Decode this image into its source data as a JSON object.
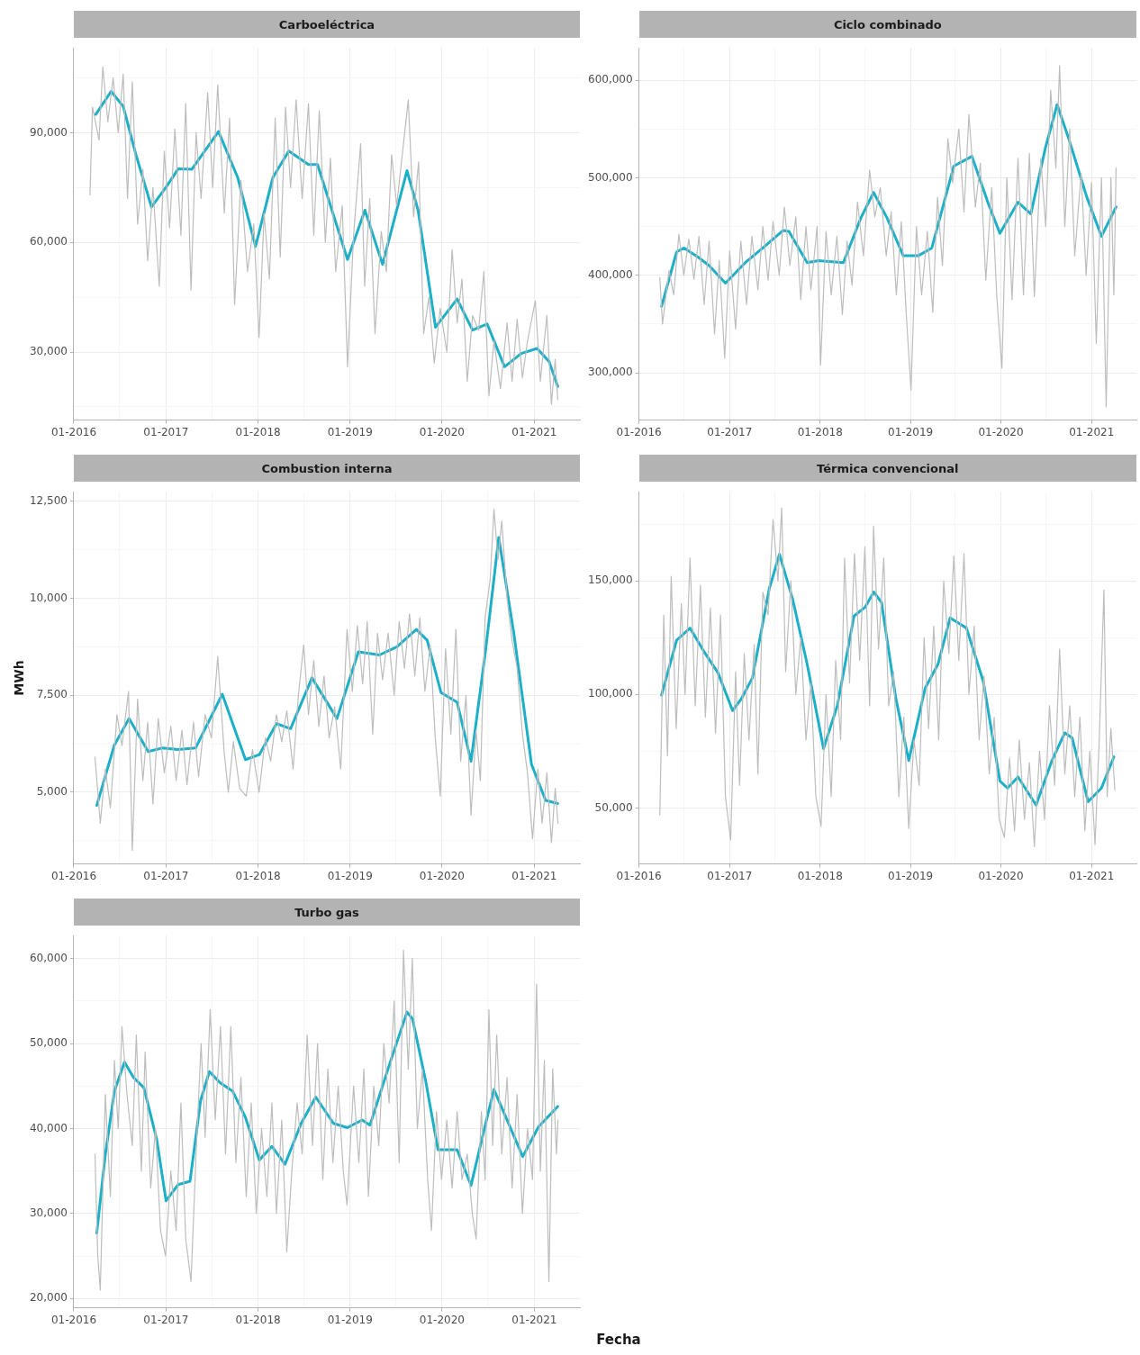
{
  "chart_data": [
    {
      "type": "line",
      "title": "Carboeléctrica",
      "grid": true,
      "xlim": [
        "2016-01-01",
        "2021-07-01"
      ],
      "xticks": [
        {
          "value": "2016-01-01",
          "label": "01-2016"
        },
        {
          "value": "2016-07-01",
          "label": null
        },
        {
          "value": "2017-01-01",
          "label": "01-2017"
        },
        {
          "value": "2017-07-01",
          "label": null
        },
        {
          "value": "2018-01-01",
          "label": "01-2018"
        },
        {
          "value": "2018-07-01",
          "label": null
        },
        {
          "value": "2019-01-01",
          "label": "01-2019"
        },
        {
          "value": "2019-07-01",
          "label": null
        },
        {
          "value": "2020-01-01",
          "label": "01-2020"
        },
        {
          "value": "2020-07-01",
          "label": null
        },
        {
          "value": "2021-01-01",
          "label": "01-2021"
        }
      ],
      "ylim": [
        11400,
        113200
      ],
      "yticks": [
        {
          "value": 15000,
          "label": null
        },
        {
          "value": 30000,
          "label": "30,000"
        },
        {
          "value": 45000,
          "label": null
        },
        {
          "value": 60000,
          "label": "60,000"
        },
        {
          "value": 75000,
          "label": null
        },
        {
          "value": 90000,
          "label": "90,000"
        },
        {
          "value": 105000,
          "label": null
        }
      ],
      "series": [
        {
          "color": "#bdbdbd",
          "x": [
            "2016-03-05",
            "2016-03-15",
            "2016-04-10",
            "2016-04-25",
            "2016-05-15",
            "2016-06-05",
            "2016-06-25",
            "2016-07-15",
            "2016-08-01",
            "2016-08-20",
            "2016-09-10",
            "2016-10-01",
            "2016-10-20",
            "2016-11-10",
            "2016-12-05",
            "2016-12-25",
            "2017-01-15",
            "2017-02-05",
            "2017-03-01",
            "2017-03-20",
            "2017-04-10",
            "2017-04-30",
            "2017-05-20",
            "2017-06-15",
            "2017-07-05",
            "2017-07-25",
            "2017-08-20",
            "2017-09-10",
            "2017-09-30",
            "2017-10-25",
            "2017-11-20",
            "2017-12-15",
            "2018-01-05",
            "2018-01-25",
            "2018-02-15",
            "2018-03-10",
            "2018-03-30",
            "2018-04-20",
            "2018-05-10",
            "2018-06-01",
            "2018-06-25",
            "2018-07-20",
            "2018-08-10",
            "2018-09-01",
            "2018-09-25",
            "2018-10-15",
            "2018-11-05",
            "2018-12-01",
            "2018-12-22",
            "2019-01-15",
            "2019-02-12",
            "2019-02-28",
            "2019-03-20",
            "2019-04-10",
            "2019-05-05",
            "2019-05-25",
            "2019-06-15",
            "2019-07-05",
            "2019-08-20",
            "2019-09-10",
            "2019-09-30",
            "2019-10-20",
            "2019-11-10",
            "2019-12-01",
            "2019-12-25",
            "2020-01-20",
            "2020-02-10",
            "2020-03-01",
            "2020-03-20",
            "2020-04-10",
            "2020-05-01",
            "2020-05-25",
            "2020-06-15",
            "2020-07-05",
            "2020-07-25",
            "2020-08-20",
            "2020-09-15",
            "2020-10-05",
            "2020-10-25",
            "2020-11-15",
            "2020-12-05",
            "2021-01-05",
            "2021-01-25",
            "2021-02-20",
            "2021-03-10",
            "2021-03-25",
            "2021-04-04"
          ],
          "values": [
            73000,
            97000,
            88000,
            108000,
            93000,
            105000,
            90000,
            106000,
            72000,
            104000,
            65000,
            80000,
            55000,
            75000,
            48000,
            85000,
            64000,
            91000,
            62000,
            98000,
            47000,
            90000,
            72000,
            101000,
            75000,
            103000,
            68000,
            94000,
            43000,
            77000,
            52000,
            65000,
            34000,
            68000,
            50000,
            94000,
            56000,
            97000,
            75000,
            99000,
            72000,
            98000,
            62000,
            96000,
            60000,
            83000,
            52000,
            70000,
            26000,
            62000,
            87000,
            48000,
            72000,
            35000,
            63000,
            52000,
            84000,
            70000,
            99000,
            67000,
            82000,
            35000,
            45000,
            27000,
            42000,
            30000,
            58000,
            38000,
            50000,
            22000,
            40000,
            36000,
            52000,
            18000,
            33000,
            20000,
            38000,
            22000,
            39000,
            23000,
            33000,
            44000,
            22000,
            40000,
            15700,
            28000,
            17000
          ]
        },
        {
          "color": "#1cb0c8",
          "x": [
            "2016-03-28",
            "2016-05-28",
            "2016-07-15",
            "2016-09-03",
            "2016-11-04",
            "2017-01-01",
            "2017-02-18",
            "2017-04-13",
            "2017-07-28",
            "2017-10-12",
            "2017-12-22",
            "2018-03-01",
            "2018-05-03",
            "2018-07-20",
            "2018-08-25",
            "2018-12-22",
            "2019-03-01",
            "2019-05-10",
            "2019-08-15",
            "2019-09-28",
            "2019-12-06",
            "2020-03-01",
            "2020-05-01",
            "2020-06-28",
            "2020-09-05",
            "2020-11-10",
            "2021-01-12",
            "2021-03-01",
            "2021-04-04"
          ],
          "values": [
            95000,
            101300,
            97200,
            84100,
            69700,
            75100,
            80100,
            80000,
            90300,
            77800,
            58900,
            77800,
            85000,
            81300,
            81300,
            55300,
            68800,
            54000,
            79600,
            68800,
            36800,
            44500,
            36000,
            37700,
            26000,
            29600,
            31000,
            27400,
            20600
          ]
        }
      ]
    },
    {
      "type": "line",
      "title": "Ciclo combinado",
      "grid": true,
      "xlim": [
        "2016-01-01",
        "2021-07-01"
      ],
      "xticks": [
        {
          "value": "2016-01-01",
          "label": "01-2016"
        },
        {
          "value": "2016-07-01",
          "label": null
        },
        {
          "value": "2017-01-01",
          "label": "01-2017"
        },
        {
          "value": "2017-07-01",
          "label": null
        },
        {
          "value": "2018-01-01",
          "label": "01-2018"
        },
        {
          "value": "2018-07-01",
          "label": null
        },
        {
          "value": "2019-01-01",
          "label": "01-2019"
        },
        {
          "value": "2019-07-01",
          "label": null
        },
        {
          "value": "2020-01-01",
          "label": "01-2020"
        },
        {
          "value": "2020-07-01",
          "label": null
        },
        {
          "value": "2021-01-01",
          "label": "01-2021"
        }
      ],
      "ylim": [
        251500,
        633200
      ],
      "yticks": [
        {
          "value": 300000,
          "label": "300,000"
        },
        {
          "value": 350000,
          "label": null
        },
        {
          "value": 400000,
          "label": "400,000"
        },
        {
          "value": 450000,
          "label": null
        },
        {
          "value": 500000,
          "label": "500,000"
        },
        {
          "value": 550000,
          "label": null
        },
        {
          "value": 600000,
          "label": "600,000"
        }
      ],
      "series": [
        {
          "color": "#bdbdbd",
          "x": [
            "2016-03-25",
            "2016-04-05",
            "2016-05-01",
            "2016-05-20",
            "2016-06-10",
            "2016-06-30",
            "2016-07-20",
            "2016-08-10",
            "2016-08-30",
            "2016-09-20",
            "2016-10-10",
            "2016-11-01",
            "2016-11-20",
            "2016-12-12",
            "2017-01-01",
            "2017-01-25",
            "2017-02-15",
            "2017-03-10",
            "2017-04-01",
            "2017-04-25",
            "2017-05-15",
            "2017-06-05",
            "2017-06-25",
            "2017-07-20",
            "2017-08-10",
            "2017-09-01",
            "2017-09-25",
            "2017-10-15",
            "2017-11-05",
            "2017-11-25",
            "2017-12-20",
            "2018-01-03",
            "2018-01-25",
            "2018-02-15",
            "2018-03-10",
            "2018-04-01",
            "2018-04-20",
            "2018-05-10",
            "2018-06-01",
            "2018-06-25",
            "2018-07-20",
            "2018-08-10",
            "2018-09-01",
            "2018-09-25",
            "2018-10-15",
            "2018-11-05",
            "2018-11-25",
            "2018-12-15",
            "2019-01-03",
            "2019-01-25",
            "2019-02-15",
            "2019-03-10",
            "2019-04-01",
            "2019-04-20",
            "2019-05-10",
            "2019-06-01",
            "2019-06-20",
            "2019-07-15",
            "2019-08-05",
            "2019-08-25",
            "2019-09-20",
            "2019-10-10",
            "2019-11-01",
            "2019-11-25",
            "2019-12-15",
            "2020-01-05",
            "2020-01-25",
            "2020-02-15",
            "2020-03-10",
            "2020-04-01",
            "2020-04-25",
            "2020-05-15",
            "2020-06-10",
            "2020-06-30",
            "2020-07-20",
            "2020-08-10",
            "2020-08-25",
            "2020-09-15",
            "2020-10-05",
            "2020-10-25",
            "2020-11-20",
            "2020-12-10",
            "2021-01-01",
            "2021-01-20",
            "2021-02-10",
            "2021-03-01",
            "2021-03-20",
            "2021-04-01",
            "2021-04-10"
          ],
          "values": [
            398000,
            350000,
            405000,
            380000,
            442000,
            400000,
            437000,
            396000,
            440000,
            370000,
            435000,
            340000,
            415000,
            315000,
            425000,
            345000,
            435000,
            370000,
            440000,
            385000,
            450000,
            395000,
            455000,
            400000,
            470000,
            410000,
            460000,
            375000,
            450000,
            385000,
            450000,
            308000,
            445000,
            380000,
            440000,
            360000,
            435000,
            390000,
            475000,
            420000,
            508000,
            460000,
            490000,
            420000,
            465000,
            380000,
            455000,
            360000,
            282000,
            450000,
            380000,
            445000,
            362000,
            480000,
            410000,
            540000,
            495000,
            550000,
            465000,
            565000,
            470000,
            515000,
            395000,
            490000,
            380000,
            305000,
            500000,
            375000,
            520000,
            380000,
            525000,
            378000,
            520000,
            450000,
            590000,
            510000,
            615000,
            450000,
            550000,
            420000,
            505000,
            400000,
            495000,
            330000,
            500000,
            265000,
            500000,
            380000,
            510000
          ]
        },
        {
          "color": "#1cb0c8",
          "x": [
            "2016-04-01",
            "2016-06-01",
            "2016-07-01",
            "2016-08-25",
            "2016-10-10",
            "2016-12-15",
            "2017-03-05",
            "2017-05-15",
            "2017-08-05",
            "2017-08-28",
            "2017-11-10",
            "2017-12-25",
            "2018-04-05",
            "2018-06-15",
            "2018-08-05",
            "2018-09-28",
            "2018-12-03",
            "2019-02-01",
            "2019-03-28",
            "2019-06-25",
            "2019-09-06",
            "2019-11-12",
            "2019-12-28",
            "2020-03-10",
            "2020-05-01",
            "2020-06-28",
            "2020-08-15",
            "2020-10-01",
            "2020-12-13",
            "2021-02-10",
            "2021-04-10"
          ],
          "values": [
            368000,
            424000,
            428000,
            419000,
            410000,
            392000,
            413000,
            428000,
            446000,
            445000,
            413000,
            415000,
            413000,
            459000,
            485000,
            459000,
            420000,
            420000,
            428000,
            512000,
            522000,
            473000,
            443000,
            475000,
            463000,
            530000,
            575000,
            540000,
            480000,
            440000,
            470000
          ]
        }
      ]
    },
    {
      "type": "line",
      "title": "Combustion interna",
      "ylabel": "MWh",
      "grid": true,
      "xlim": [
        "2016-01-01",
        "2021-07-01"
      ],
      "xticks": [
        {
          "value": "2016-01-01",
          "label": "01-2016"
        },
        {
          "value": "2016-07-01",
          "label": null
        },
        {
          "value": "2017-01-01",
          "label": "01-2017"
        },
        {
          "value": "2017-07-01",
          "label": null
        },
        {
          "value": "2018-01-01",
          "label": "01-2018"
        },
        {
          "value": "2018-07-01",
          "label": null
        },
        {
          "value": "2019-01-01",
          "label": "01-2019"
        },
        {
          "value": "2019-07-01",
          "label": null
        },
        {
          "value": "2020-01-01",
          "label": "01-2020"
        },
        {
          "value": "2020-07-01",
          "label": null
        },
        {
          "value": "2021-01-01",
          "label": "01-2021"
        }
      ],
      "ylim": [
        3150,
        12750
      ],
      "yticks": [
        {
          "value": 3750,
          "label": null
        },
        {
          "value": 5000,
          "label": "5,000"
        },
        {
          "value": 6250,
          "label": null
        },
        {
          "value": 7500,
          "label": "7,500"
        },
        {
          "value": 8750,
          "label": null
        },
        {
          "value": 10000,
          "label": "10,000"
        },
        {
          "value": 11250,
          "label": null
        },
        {
          "value": 12500,
          "label": "12,500"
        }
      ],
      "series": [
        {
          "color": "#bdbdbd",
          "x": [
            "2016-03-25",
            "2016-04-15",
            "2016-05-05",
            "2016-05-25",
            "2016-06-20",
            "2016-07-10",
            "2016-08-05",
            "2016-08-20",
            "2016-09-10",
            "2016-10-01",
            "2016-10-20",
            "2016-11-10",
            "2016-12-01",
            "2016-12-25",
            "2017-01-20",
            "2017-02-10",
            "2017-03-05",
            "2017-03-25",
            "2017-04-20",
            "2017-05-10",
            "2017-06-05",
            "2017-06-30",
            "2017-07-25",
            "2017-08-20",
            "2017-09-05",
            "2017-09-25",
            "2017-10-20",
            "2017-11-15",
            "2017-12-10",
            "2018-01-05",
            "2018-01-30",
            "2018-02-20",
            "2018-03-15",
            "2018-04-05",
            "2018-04-25",
            "2018-05-20",
            "2018-06-10",
            "2018-07-01",
            "2018-07-20",
            "2018-08-10",
            "2018-08-30",
            "2018-09-20",
            "2018-10-10",
            "2018-11-01",
            "2018-11-25",
            "2018-12-20",
            "2019-01-10",
            "2019-01-30",
            "2019-02-20",
            "2019-03-10",
            "2019-04-01",
            "2019-04-20",
            "2019-05-10",
            "2019-06-01",
            "2019-06-25",
            "2019-07-15",
            "2019-08-05",
            "2019-08-25",
            "2019-09-15",
            "2019-10-05",
            "2019-10-25",
            "2019-11-15",
            "2019-12-05",
            "2019-12-25",
            "2020-01-15",
            "2020-02-05",
            "2020-02-25",
            "2020-03-15",
            "2020-04-05",
            "2020-04-25",
            "2020-05-15",
            "2020-06-01",
            "2020-06-20",
            "2020-07-10",
            "2020-07-25",
            "2020-08-10",
            "2020-08-25",
            "2020-09-15",
            "2020-10-05",
            "2020-10-25",
            "2020-11-15",
            "2020-12-05",
            "2020-12-25",
            "2021-01-15",
            "2021-02-01",
            "2021-02-20",
            "2021-03-10",
            "2021-03-25",
            "2021-04-05"
          ],
          "values": [
            5900,
            4200,
            5600,
            4600,
            7000,
            6200,
            7600,
            3500,
            7400,
            5300,
            6800,
            4700,
            6900,
            5500,
            6700,
            5300,
            6600,
            5200,
            6800,
            5400,
            7000,
            6400,
            8500,
            6000,
            5000,
            6300,
            5100,
            4900,
            6100,
            5000,
            6400,
            5800,
            7000,
            6300,
            7100,
            5600,
            7500,
            8800,
            7000,
            8400,
            6700,
            8000,
            6400,
            7200,
            5600,
            9200,
            7600,
            9300,
            7800,
            9400,
            6500,
            9100,
            7900,
            9100,
            7500,
            9400,
            8200,
            9600,
            8000,
            9500,
            7600,
            8800,
            6400,
            4900,
            8700,
            6500,
            9200,
            5800,
            7500,
            4400,
            6600,
            5300,
            9500,
            10500,
            12300,
            11000,
            12000,
            10000,
            8900,
            8200,
            6500,
            5500,
            3800,
            5600,
            4200,
            5500,
            3700,
            5100,
            4200
          ]
        },
        {
          "color": "#1cb0c8",
          "x": [
            "2016-04-01",
            "2016-06-10",
            "2016-08-07",
            "2016-10-22",
            "2016-12-16",
            "2017-02-18",
            "2017-04-28",
            "2017-08-12",
            "2017-11-12",
            "2018-01-06",
            "2018-03-15",
            "2018-05-10",
            "2018-08-03",
            "2018-11-10",
            "2019-02-03",
            "2019-04-28",
            "2019-07-06",
            "2019-09-21",
            "2019-11-03",
            "2019-12-28",
            "2020-03-01",
            "2020-04-25",
            "2020-06-22",
            "2020-08-13",
            "2020-10-12",
            "2020-12-21",
            "2021-02-15",
            "2021-04-04"
          ],
          "values": [
            4660,
            6220,
            6900,
            6050,
            6140,
            6100,
            6140,
            7530,
            5840,
            5970,
            6770,
            6640,
            7950,
            6900,
            8620,
            8540,
            8750,
            9200,
            8920,
            7570,
            7320,
            5800,
            8670,
            11570,
            9090,
            5720,
            4790,
            4710
          ]
        }
      ]
    },
    {
      "type": "line",
      "title": "Térmica convencional",
      "grid": true,
      "xlim": [
        "2016-01-01",
        "2021-07-01"
      ],
      "xticks": [
        {
          "value": "2016-01-01",
          "label": "01-2016"
        },
        {
          "value": "2016-07-01",
          "label": null
        },
        {
          "value": "2017-01-01",
          "label": "01-2017"
        },
        {
          "value": "2017-07-01",
          "label": null
        },
        {
          "value": "2018-01-01",
          "label": "01-2018"
        },
        {
          "value": "2018-07-01",
          "label": null
        },
        {
          "value": "2019-01-01",
          "label": "01-2019"
        },
        {
          "value": "2019-07-01",
          "label": null
        },
        {
          "value": "2020-01-01",
          "label": "01-2020"
        },
        {
          "value": "2020-07-01",
          "label": null
        },
        {
          "value": "2021-01-01",
          "label": "01-2021"
        }
      ],
      "ylim": [
        25400,
        189200
      ],
      "yticks": [
        {
          "value": 50000,
          "label": "50,000"
        },
        {
          "value": 75000,
          "label": null
        },
        {
          "value": 100000,
          "label": "100,000"
        },
        {
          "value": 125000,
          "label": null
        },
        {
          "value": 150000,
          "label": "150,000"
        },
        {
          "value": 175000,
          "label": null
        }
      ],
      "series": [
        {
          "color": "#bdbdbd",
          "x": [
            "2016-03-25",
            "2016-04-10",
            "2016-04-25",
            "2016-05-10",
            "2016-05-30",
            "2016-06-20",
            "2016-07-05",
            "2016-07-25",
            "2016-08-15",
            "2016-09-05",
            "2016-09-25",
            "2016-10-15",
            "2016-11-05",
            "2016-11-25",
            "2016-12-15",
            "2017-01-05",
            "2017-01-25",
            "2017-02-10",
            "2017-03-01",
            "2017-03-20",
            "2017-04-10",
            "2017-04-25",
            "2017-05-15",
            "2017-06-05",
            "2017-06-25",
            "2017-07-15",
            "2017-07-30",
            "2017-08-15",
            "2017-09-05",
            "2017-09-25",
            "2017-10-15",
            "2017-11-05",
            "2017-11-25",
            "2017-12-15",
            "2018-01-05",
            "2018-01-25",
            "2018-02-15",
            "2018-03-05",
            "2018-03-25",
            "2018-04-10",
            "2018-04-30",
            "2018-05-20",
            "2018-06-10",
            "2018-07-01",
            "2018-07-20",
            "2018-08-05",
            "2018-08-25",
            "2018-09-15",
            "2018-10-05",
            "2018-10-25",
            "2018-11-15",
            "2018-12-05",
            "2018-12-25",
            "2019-01-15",
            "2019-02-05",
            "2019-02-25",
            "2019-03-15",
            "2019-04-05",
            "2019-04-25",
            "2019-05-15",
            "2019-06-05",
            "2019-06-25",
            "2019-07-15",
            "2019-08-05",
            "2019-08-25",
            "2019-09-15",
            "2019-10-05",
            "2019-10-25",
            "2019-11-15",
            "2019-12-05",
            "2019-12-25",
            "2020-01-15",
            "2020-02-05",
            "2020-02-25",
            "2020-03-15",
            "2020-04-05",
            "2020-04-25",
            "2020-05-15",
            "2020-06-05",
            "2020-06-25",
            "2020-07-15",
            "2020-08-05",
            "2020-08-25",
            "2020-09-15",
            "2020-10-05",
            "2020-10-25",
            "2020-11-15",
            "2020-12-05",
            "2020-12-25",
            "2021-01-15",
            "2021-02-01",
            "2021-02-20",
            "2021-03-05",
            "2021-03-20",
            "2021-04-05"
          ],
          "values": [
            47000,
            135000,
            73000,
            152000,
            85000,
            140000,
            100000,
            160000,
            95000,
            148000,
            90000,
            138000,
            83000,
            135000,
            55000,
            36000,
            110000,
            60000,
            118000,
            80000,
            122000,
            65000,
            145000,
            135000,
            177000,
            150000,
            182000,
            110000,
            150000,
            100000,
            125000,
            80000,
            105000,
            55000,
            42000,
            100000,
            55000,
            115000,
            80000,
            160000,
            105000,
            162000,
            115000,
            165000,
            95000,
            174000,
            120000,
            160000,
            95000,
            110000,
            55000,
            90000,
            41000,
            80000,
            60000,
            125000,
            85000,
            130000,
            80000,
            150000,
            118000,
            161000,
            115000,
            162000,
            100000,
            130000,
            80000,
            108000,
            65000,
            90000,
            45000,
            37000,
            72000,
            40000,
            80000,
            45000,
            70000,
            33000,
            75000,
            45000,
            95000,
            60000,
            120000,
            65000,
            95000,
            55000,
            90000,
            40000,
            75000,
            34000,
            80000,
            146000,
            55000,
            85000,
            58000
          ]
        },
        {
          "color": "#1cb0c8",
          "x": [
            "2016-04-01",
            "2016-06-01",
            "2016-07-25",
            "2016-09-25",
            "2016-11-15",
            "2017-01-13",
            "2017-02-18",
            "2017-04-03",
            "2017-06-10",
            "2017-07-21",
            "2017-09-12",
            "2017-11-10",
            "2018-01-15",
            "2018-03-12",
            "2018-05-18",
            "2018-07-01",
            "2018-08-06",
            "2018-09-06",
            "2018-11-03",
            "2018-12-25",
            "2019-03-01",
            "2019-04-22",
            "2019-06-10",
            "2019-08-15",
            "2019-10-22",
            "2019-12-28",
            "2020-01-28",
            "2020-03-10",
            "2020-05-22",
            "2020-07-25",
            "2020-09-15",
            "2020-10-15",
            "2020-12-18",
            "2021-02-10",
            "2021-04-01"
          ],
          "values": [
            99700,
            123900,
            129200,
            117900,
            109500,
            92900,
            98200,
            107300,
            146600,
            161700,
            142100,
            113300,
            76200,
            95200,
            134500,
            138300,
            145100,
            140500,
            98200,
            70900,
            102700,
            113300,
            133700,
            129200,
            105700,
            61900,
            58800,
            63700,
            51300,
            70900,
            83100,
            80800,
            52800,
            58800,
            72500
          ]
        }
      ]
    },
    {
      "type": "line",
      "title": "Turbo gas",
      "xlabel": "Fecha",
      "grid": true,
      "xlim": [
        "2016-01-01",
        "2021-07-01"
      ],
      "xticks": [
        {
          "value": "2016-01-01",
          "label": "01-2016"
        },
        {
          "value": "2016-07-01",
          "label": null
        },
        {
          "value": "2017-01-01",
          "label": "01-2017"
        },
        {
          "value": "2017-07-01",
          "label": null
        },
        {
          "value": "2018-01-01",
          "label": "01-2018"
        },
        {
          "value": "2018-07-01",
          "label": null
        },
        {
          "value": "2019-01-01",
          "label": "01-2019"
        },
        {
          "value": "2019-07-01",
          "label": null
        },
        {
          "value": "2020-01-01",
          "label": "01-2020"
        },
        {
          "value": "2020-07-01",
          "label": null
        },
        {
          "value": "2021-01-01",
          "label": "01-2021"
        }
      ],
      "ylim": [
        18900,
        62700
      ],
      "yticks": [
        {
          "value": 20000,
          "label": "20,000"
        },
        {
          "value": 25000,
          "label": null
        },
        {
          "value": 30000,
          "label": "30,000"
        },
        {
          "value": 35000,
          "label": null
        },
        {
          "value": 40000,
          "label": "40,000"
        },
        {
          "value": 45000,
          "label": null
        },
        {
          "value": 50000,
          "label": "50,000"
        },
        {
          "value": 55000,
          "label": null
        },
        {
          "value": 60000,
          "label": "60,000"
        }
      ],
      "series": [
        {
          "color": "#bdbdbd",
          "x": [
            "2016-03-25",
            "2016-04-05",
            "2016-04-15",
            "2016-05-05",
            "2016-05-25",
            "2016-06-10",
            "2016-06-25",
            "2016-07-10",
            "2016-07-30",
            "2016-08-20",
            "2016-09-05",
            "2016-09-25",
            "2016-10-10",
            "2016-11-01",
            "2016-11-20",
            "2016-12-10",
            "2016-12-30",
            "2017-01-20",
            "2017-02-10",
            "2017-03-01",
            "2017-03-20",
            "2017-04-10",
            "2017-04-30",
            "2017-05-20",
            "2017-06-05",
            "2017-06-25",
            "2017-07-15",
            "2017-08-05",
            "2017-08-25",
            "2017-09-15",
            "2017-10-05",
            "2017-10-25",
            "2017-11-15",
            "2017-12-05",
            "2017-12-25",
            "2018-01-15",
            "2018-02-05",
            "2018-02-25",
            "2018-03-15",
            "2018-04-05",
            "2018-04-25",
            "2018-05-15",
            "2018-06-05",
            "2018-06-25",
            "2018-07-15",
            "2018-08-05",
            "2018-08-25",
            "2018-09-15",
            "2018-10-05",
            "2018-10-25",
            "2018-11-15",
            "2018-12-05",
            "2018-12-20",
            "2019-01-15",
            "2019-02-05",
            "2019-02-25",
            "2019-03-15",
            "2019-04-05",
            "2019-04-25",
            "2019-05-15",
            "2019-06-05",
            "2019-06-25",
            "2019-07-15",
            "2019-08-01",
            "2019-08-20",
            "2019-09-05",
            "2019-09-25",
            "2019-10-15",
            "2019-11-05",
            "2019-11-20",
            "2019-12-10",
            "2019-12-30",
            "2020-01-20",
            "2020-02-10",
            "2020-03-01",
            "2020-03-20",
            "2020-04-10",
            "2020-04-30",
            "2020-05-15",
            "2020-06-05",
            "2020-06-20",
            "2020-07-05",
            "2020-07-20",
            "2020-08-05",
            "2020-08-25",
            "2020-09-15",
            "2020-10-05",
            "2020-10-25",
            "2020-11-15",
            "2020-12-05",
            "2020-12-25",
            "2021-01-10",
            "2021-01-25",
            "2021-02-10",
            "2021-02-28",
            "2021-03-15",
            "2021-03-30",
            "2021-04-05"
          ],
          "values": [
            37000,
            25000,
            21000,
            44000,
            32000,
            48000,
            40000,
            52000,
            44000,
            38000,
            51000,
            35000,
            49000,
            33000,
            40000,
            28000,
            25000,
            35000,
            28000,
            43000,
            27000,
            22000,
            37000,
            50000,
            39000,
            54000,
            41000,
            52000,
            37000,
            52000,
            36000,
            46000,
            32000,
            43000,
            30000,
            40000,
            32000,
            43000,
            30000,
            41000,
            25500,
            35000,
            43000,
            37000,
            51000,
            38000,
            50000,
            34000,
            47000,
            36000,
            45000,
            35000,
            31000,
            45000,
            36000,
            47000,
            32000,
            45000,
            38000,
            50000,
            43000,
            55000,
            36000,
            61000,
            47000,
            60000,
            40000,
            47000,
            34000,
            28000,
            42000,
            34000,
            41000,
            33000,
            42000,
            34000,
            37000,
            30000,
            27000,
            42000,
            34000,
            54000,
            38000,
            51000,
            37000,
            46000,
            33000,
            44000,
            30000,
            40000,
            34000,
            57000,
            35000,
            48000,
            22000,
            47000,
            37000,
            41000
          ]
        },
        {
          "color": "#1cb0c8",
          "x": [
            "2016-04-01",
            "2016-05-04",
            "2016-06-10",
            "2016-07-20",
            "2016-08-25",
            "2016-10-05",
            "2016-11-25",
            "2017-01-01",
            "2017-02-18",
            "2017-04-06",
            "2017-05-18",
            "2017-06-22",
            "2017-08-03",
            "2017-09-22",
            "2017-11-12",
            "2018-01-06",
            "2018-02-25",
            "2018-04-18",
            "2018-06-21",
            "2018-08-18",
            "2018-10-27",
            "2018-12-21",
            "2019-02-18",
            "2019-03-21",
            "2019-06-06",
            "2019-08-15",
            "2019-09-06",
            "2019-10-28",
            "2019-12-16",
            "2020-03-01",
            "2020-04-25",
            "2020-06-22",
            "2020-07-25",
            "2020-09-21",
            "2020-11-16",
            "2021-01-18",
            "2021-04-04"
          ],
          "values": [
            27700,
            36700,
            44400,
            47800,
            46000,
            44800,
            38700,
            31500,
            33400,
            33800,
            43300,
            46700,
            45400,
            44400,
            41300,
            36300,
            37900,
            35800,
            40600,
            43700,
            40600,
            40100,
            41000,
            40400,
            47500,
            53700,
            52900,
            45600,
            37500,
            37500,
            33300,
            40600,
            44600,
            40600,
            36700,
            40200,
            42600
          ]
        }
      ]
    }
  ]
}
